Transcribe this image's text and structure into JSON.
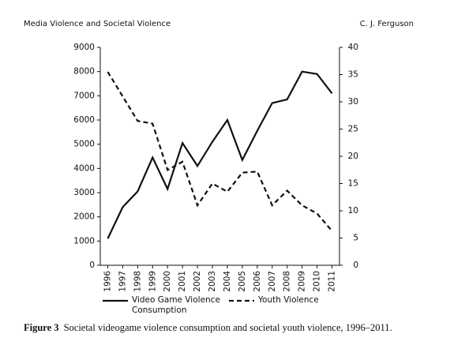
{
  "header": {
    "left": "Media Violence and Societal Violence",
    "right": "C. J. Ferguson"
  },
  "caption": {
    "label": "Figure 3",
    "text": "Societal videogame violence consumption and societal youth violence, 1996–2011."
  },
  "chart_data": {
    "type": "line",
    "categories": [
      "1996",
      "1997",
      "1998",
      "1999",
      "2000",
      "2001",
      "2002",
      "2003",
      "2004",
      "2005",
      "2006",
      "2007",
      "2008",
      "2009",
      "2010",
      "2011"
    ],
    "series": [
      {
        "name": "Video Game Violence Consumption",
        "color": "#111111",
        "dash": "solid",
        "values": [
          1100,
          2400,
          3050,
          4450,
          3150,
          5050,
          4100,
          5100,
          6000,
          4350,
          5550,
          6700,
          6850,
          8000,
          7900,
          7100
        ]
      },
      {
        "name": "Youth Violence",
        "color": "#111111",
        "dash": "dashed",
        "axis": "y2",
        "values": [
          35.5,
          31,
          26.5,
          26,
          17.5,
          19,
          11,
          15,
          13.5,
          17,
          17.2,
          11,
          13.7,
          11,
          9.5,
          6.3
        ]
      }
    ],
    "ylim": [
      0,
      9000
    ],
    "yticks": [
      0,
      1000,
      2000,
      3000,
      4000,
      5000,
      6000,
      7000,
      8000,
      9000
    ],
    "y2lim": [
      0,
      40
    ],
    "y2ticks": [
      0,
      5,
      10,
      15,
      20,
      25,
      30,
      35,
      40
    ],
    "grid": false,
    "legend": "bottom"
  }
}
